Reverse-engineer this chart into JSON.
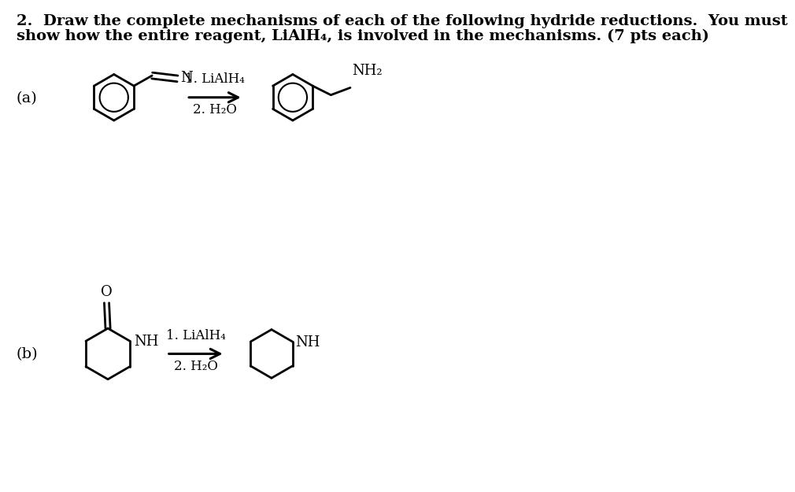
{
  "title_line1": "2.  Draw the complete mechanisms of each of the following hydride reductions.  You must",
  "title_line2": "show how the entire reagent, LiAlH₄, is involved in the mechanisms. (7 pts each)",
  "label_a": "(a)",
  "label_b": "(b)",
  "reagent_a_line1": "1. LiAlH₄",
  "reagent_a_line2": "2. H₂O",
  "reagent_b_line1": "1. LiAlH₄",
  "reagent_b_line2": "2. H₂O",
  "bg_color": "#ffffff",
  "line_color": "#000000",
  "font_size_title": 14,
  "font_size_label": 14,
  "font_size_chem": 13,
  "font_size_reagent": 12
}
